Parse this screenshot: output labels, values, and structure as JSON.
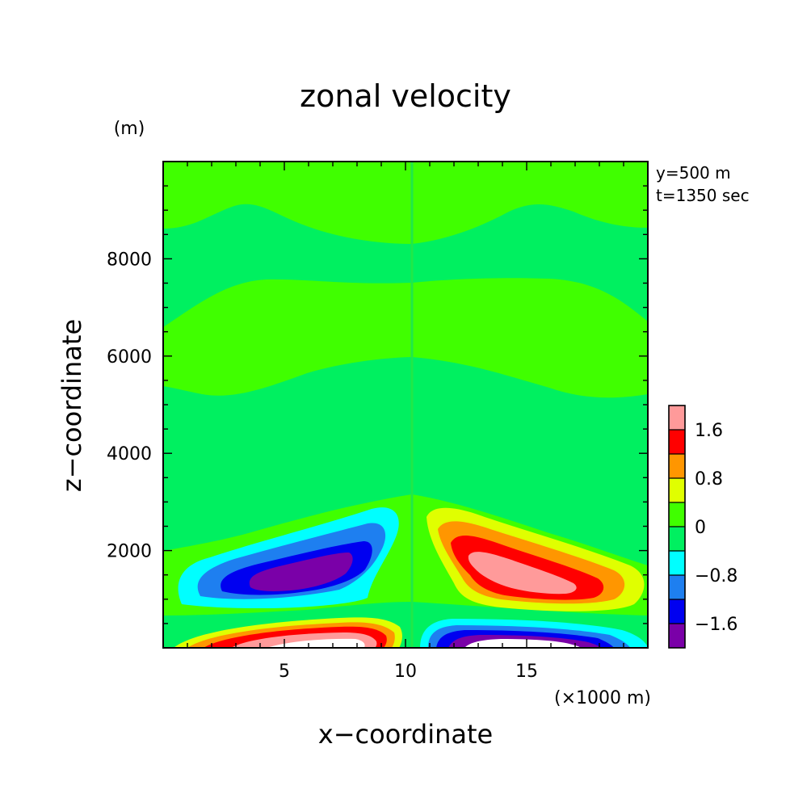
{
  "chart_data": {
    "type": "heatmap",
    "title": "zonal velocity",
    "xlabel": "x−coordinate",
    "ylabel": "z−coordinate",
    "x_unit": "(×1000 m)",
    "y_unit": "(m)",
    "annotations": [
      "y=500 m",
      "t=1350 sec"
    ],
    "xlim": [
      0,
      20
    ],
    "ylim": [
      0,
      10000
    ],
    "x_ticks": [
      {
        "value": 5,
        "label": "5"
      },
      {
        "value": 10,
        "label": "10"
      },
      {
        "value": 15,
        "label": "15"
      }
    ],
    "y_ticks": [
      {
        "value": 2000,
        "label": "2000"
      },
      {
        "value": 4000,
        "label": "4000"
      },
      {
        "value": 6000,
        "label": "6000"
      },
      {
        "value": 8000,
        "label": "8000"
      }
    ],
    "colorbar": {
      "levels": [
        -2.0,
        -1.6,
        -1.2,
        -0.8,
        -0.4,
        0,
        0.4,
        0.8,
        1.2,
        1.6,
        2.0
      ],
      "colors": [
        "#7a00a8",
        "#0000f0",
        "#1e7ff0",
        "#00ffff",
        "#00f060",
        "#40ff00",
        "#e0ff00",
        "#ff9600",
        "#ff0000",
        "#ff9a9a"
      ],
      "labels": [
        {
          "value": 1.6,
          "label": "1.6"
        },
        {
          "value": 0.8,
          "label": "0.8"
        },
        {
          "value": 0,
          "label": "0"
        },
        {
          "value": -0.8,
          "label": "−0.8"
        },
        {
          "value": -1.6,
          "label": "−1.6"
        }
      ]
    },
    "features": [
      {
        "name": "negative-core-left",
        "x": 6.0,
        "z": 1450,
        "value": -2.1
      },
      {
        "name": "positive-core-right",
        "x": 14.8,
        "z": 1550,
        "value": 2.0
      },
      {
        "name": "positive-surface-left",
        "x": 6.5,
        "z": 50,
        "value": 2.4
      },
      {
        "name": "negative-surface-right",
        "x": 14.5,
        "z": 50,
        "value": -2.4
      }
    ]
  }
}
